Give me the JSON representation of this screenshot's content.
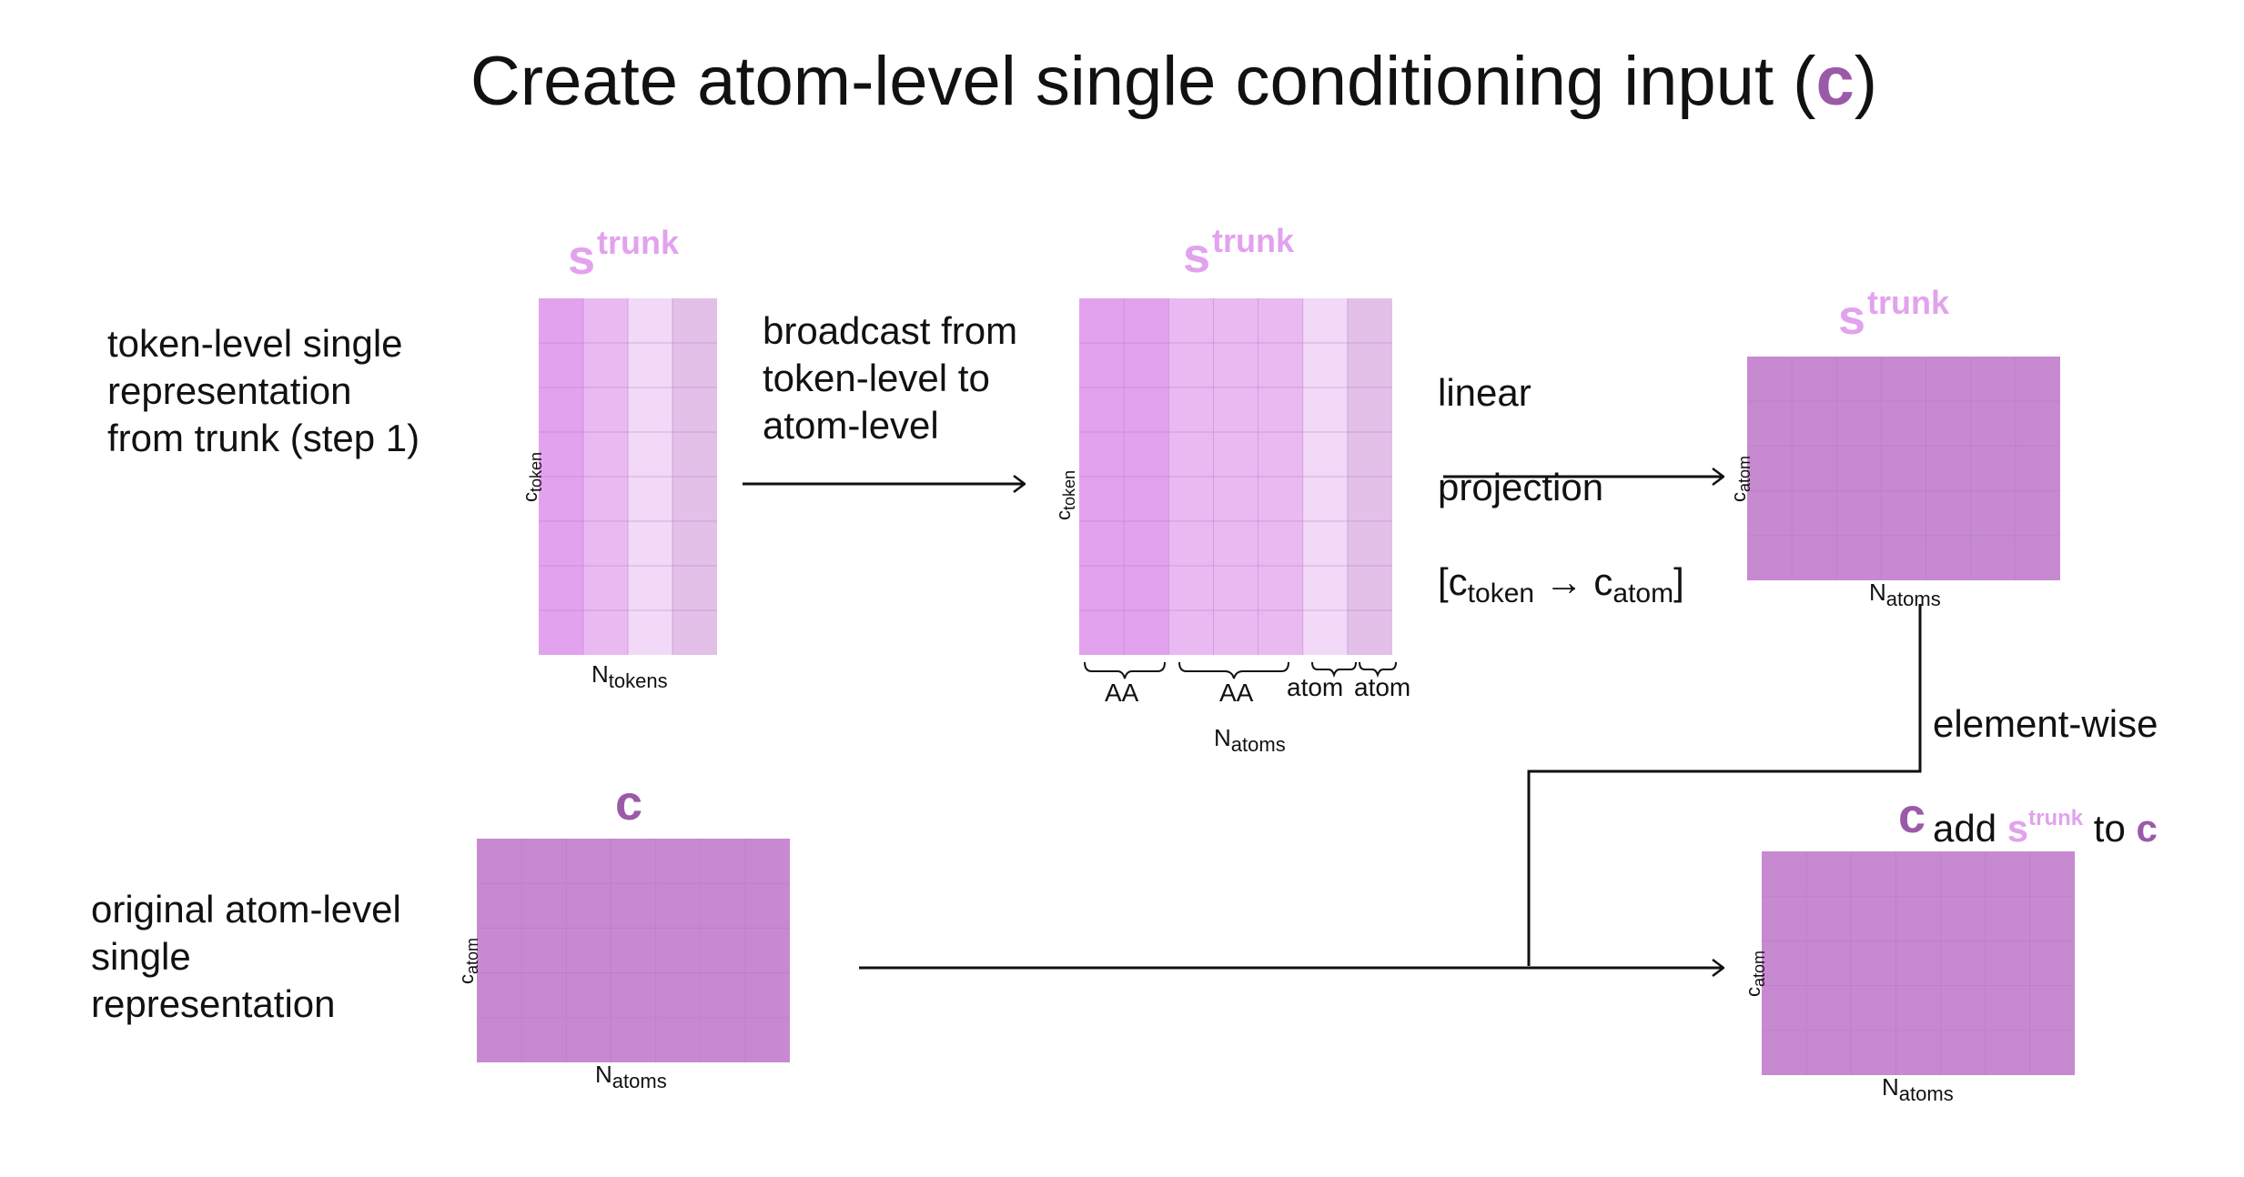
{
  "title": {
    "text": "Create atom-level single conditioning input (",
    "c": "c",
    "close": ")"
  },
  "descriptions": {
    "token_level": "token-level single\nrepresentation\nfrom trunk (step 1)",
    "original_atom": "original atom-level\nsingle\nrepresentation"
  },
  "steps": {
    "broadcast": "broadcast from\ntoken-level to\natom-level",
    "linear_line1": "linear",
    "linear_line2": "projection",
    "linear_bracket_open": "[c",
    "linear_from_sub": "token",
    "linear_arrow": "→",
    "linear_to": "c",
    "linear_to_sub": "atom",
    "linear_bracket_close": "]",
    "add_line1": "element-wise",
    "add_prefix": "add ",
    "add_s": "s",
    "add_sup": "trunk",
    "add_to": " to ",
    "add_c": "c"
  },
  "matrices": {
    "s_trunk_label": "s",
    "s_trunk_sup": "trunk",
    "c_label": "c"
  },
  "axes": {
    "c_token_main": "c",
    "c_token_sub": "token",
    "c_atom_main": "c",
    "c_atom_sub": "atom",
    "n_tokens_main": "N",
    "n_tokens_sub": "tokens",
    "n_atoms_main": "N",
    "n_atoms_sub": "atoms"
  },
  "braces": {
    "aa1": "AA",
    "aa2": "AA",
    "atom1": "atom",
    "atom2": "atom"
  },
  "colors": {
    "light_pink_label": "#e2a2ee",
    "purple_label": "#9b5aa8",
    "col1": "#e2a2ee",
    "col2": "#e9baf2",
    "col3": "#f2d9f7",
    "col4": "#e2c0e8",
    "atom_matrix": "#c78ad0",
    "grid_line": "#b478c0"
  }
}
